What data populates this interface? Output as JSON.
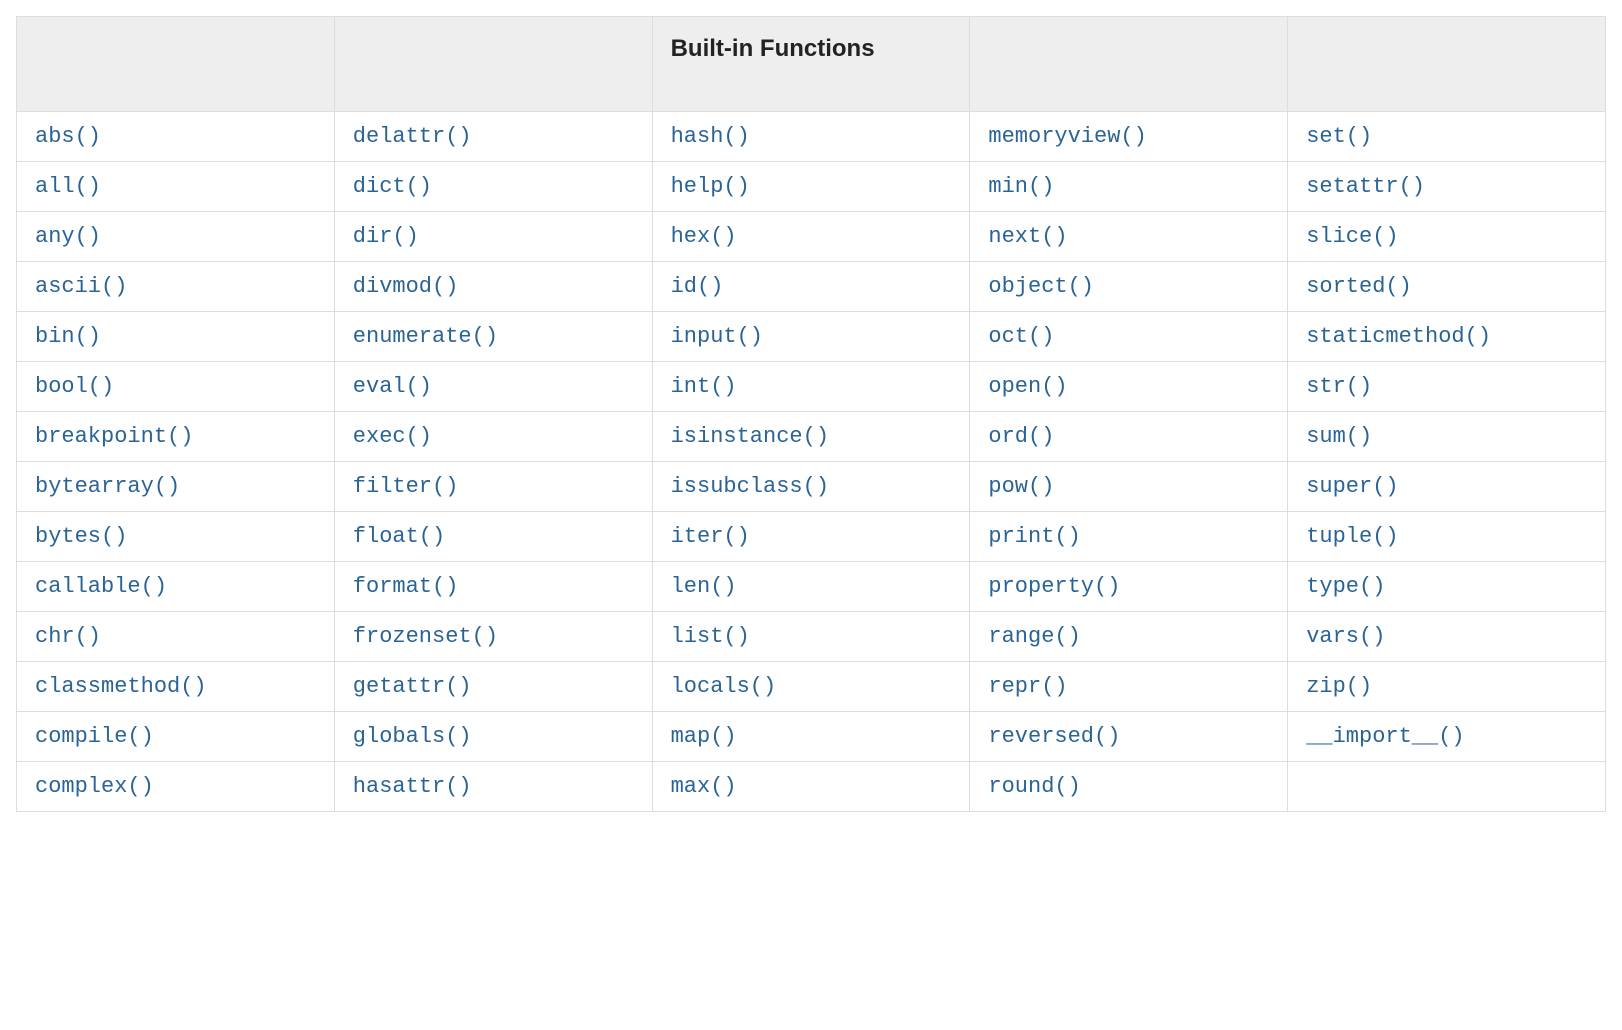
{
  "table": {
    "type": "table",
    "columns": [
      "",
      "",
      "Built-in Functions",
      "",
      ""
    ],
    "column_count": 5,
    "header_bg": "#eeeeee",
    "header_color": "#222222",
    "header_font_size": 24,
    "header_font_weight": 700,
    "cell_bg": "#ffffff",
    "border_color": "#dddddd",
    "link_color": "#2a6496",
    "link_font_family": "monospace",
    "link_font_size": 22,
    "rows": [
      [
        "abs()",
        "delattr()",
        "hash()",
        "memoryview()",
        "set()"
      ],
      [
        "all()",
        "dict()",
        "help()",
        "min()",
        "setattr()"
      ],
      [
        "any()",
        "dir()",
        "hex()",
        "next()",
        "slice()"
      ],
      [
        "ascii()",
        "divmod()",
        "id()",
        "object()",
        "sorted()"
      ],
      [
        "bin()",
        "enumerate()",
        "input()",
        "oct()",
        "staticmethod()"
      ],
      [
        "bool()",
        "eval()",
        "int()",
        "open()",
        "str()"
      ],
      [
        "breakpoint()",
        "exec()",
        "isinstance()",
        "ord()",
        "sum()"
      ],
      [
        "bytearray()",
        "filter()",
        "issubclass()",
        "pow()",
        "super()"
      ],
      [
        "bytes()",
        "float()",
        "iter()",
        "print()",
        "tuple()"
      ],
      [
        "callable()",
        "format()",
        "len()",
        "property()",
        "type()"
      ],
      [
        "chr()",
        "frozenset()",
        "list()",
        "range()",
        "vars()"
      ],
      [
        "classmethod()",
        "getattr()",
        "locals()",
        "repr()",
        "zip()"
      ],
      [
        "compile()",
        "globals()",
        "map()",
        "reversed()",
        "__import__()"
      ],
      [
        "complex()",
        "hasattr()",
        "max()",
        "round()",
        ""
      ]
    ]
  }
}
